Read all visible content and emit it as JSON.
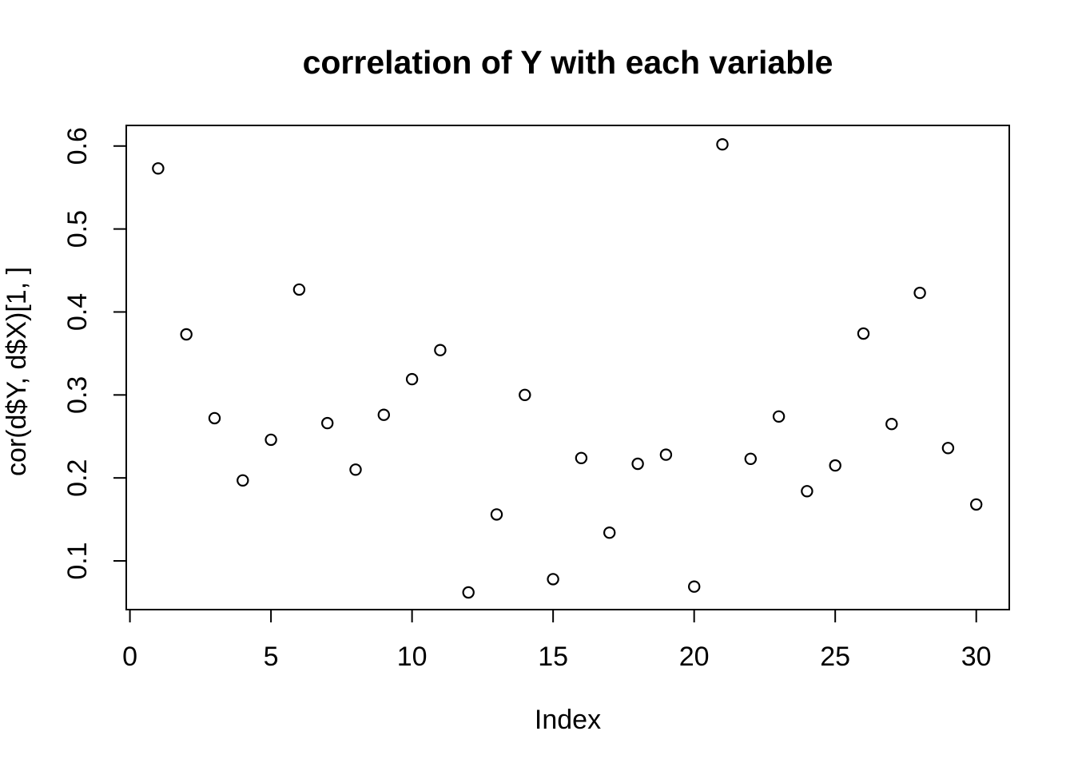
{
  "colors": {
    "foreground": "#000000",
    "background": "#ffffff"
  },
  "chart_data": {
    "type": "scatter",
    "title": "correlation of Y with each variable",
    "xlabel": "Index",
    "ylabel": "cor(d$Y, d$X)[1, ]",
    "marker": "open-circle",
    "grid": false,
    "legend": false,
    "x": [
      1,
      2,
      3,
      4,
      5,
      6,
      7,
      8,
      9,
      10,
      11,
      12,
      13,
      14,
      15,
      16,
      17,
      18,
      19,
      20,
      21,
      22,
      23,
      24,
      25,
      26,
      27,
      28,
      29,
      30
    ],
    "y": [
      0.573,
      0.373,
      0.272,
      0.197,
      0.246,
      0.427,
      0.266,
      0.21,
      0.276,
      0.319,
      0.354,
      0.062,
      0.156,
      0.3,
      0.078,
      0.224,
      0.134,
      0.217,
      0.228,
      0.069,
      0.602,
      0.223,
      0.274,
      0.184,
      0.215,
      0.374,
      0.265,
      0.423,
      0.236,
      0.168
    ],
    "xlim": [
      -0.13,
      31.17
    ],
    "ylim": [
      0.0413,
      0.6248
    ],
    "x_tick_values": [
      0,
      5,
      10,
      15,
      20,
      25,
      30
    ],
    "x_tick_labels": [
      "0",
      "5",
      "10",
      "15",
      "20",
      "25",
      "30"
    ],
    "y_tick_values": [
      0.1,
      0.2,
      0.3,
      0.4,
      0.5,
      0.6
    ],
    "y_tick_labels": [
      "0.1",
      "0.2",
      "0.3",
      "0.4",
      "0.5",
      "0.6"
    ]
  }
}
